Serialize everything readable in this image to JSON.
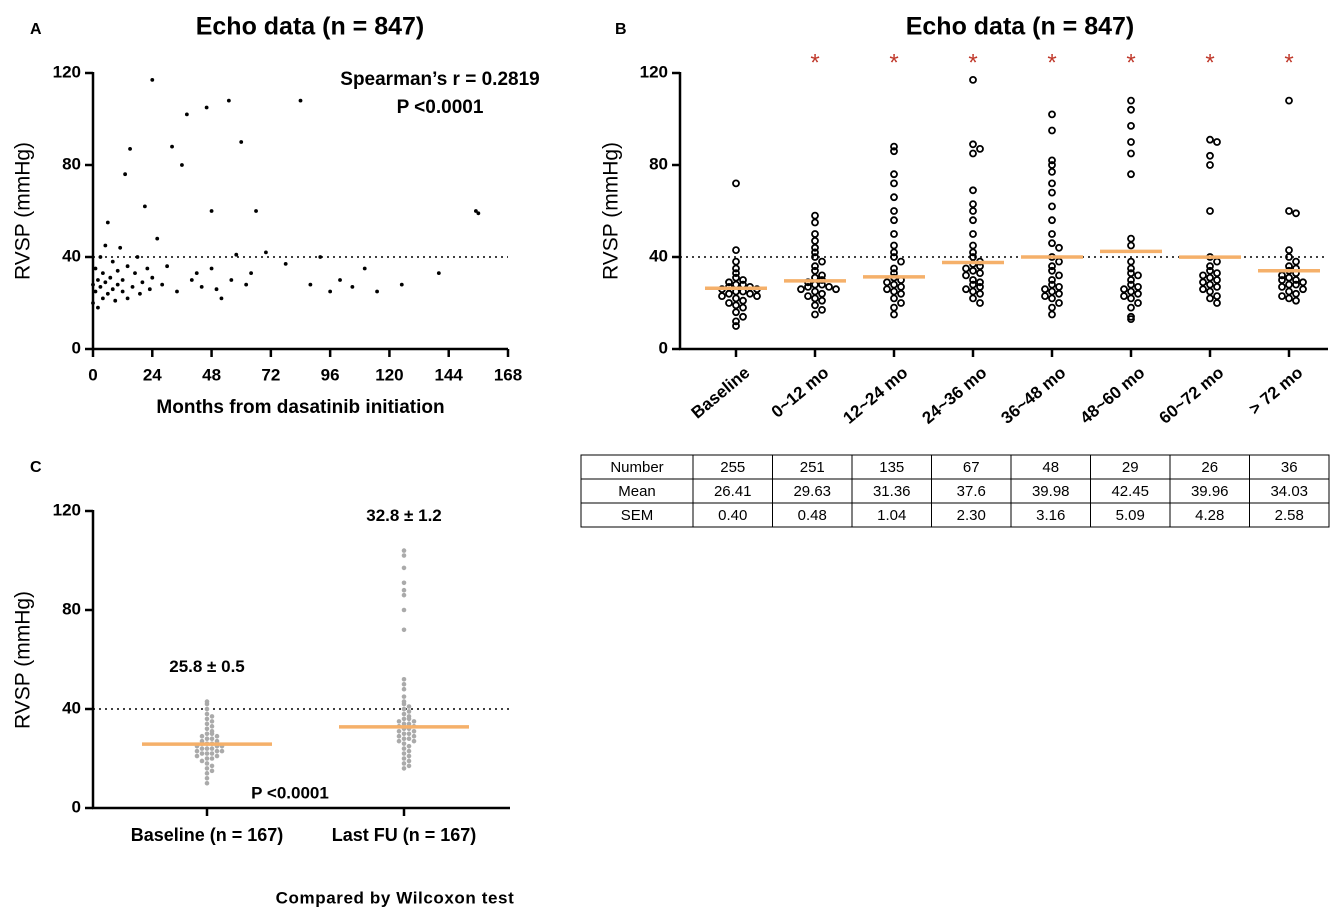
{
  "chart_data": [
    {
      "panel": "A",
      "type": "scatter",
      "title": "Echo data (n = 847)",
      "xlabel": "Months from dasatinib initiation",
      "ylabel": "RVSP (mmHg)",
      "annotations": [
        "Spearman’s r = 0.2819",
        "P <0.0001"
      ],
      "x": [
        0,
        0,
        1,
        1,
        2,
        2,
        3,
        3,
        4,
        4,
        5,
        5,
        6,
        6,
        7,
        8,
        8,
        9,
        10,
        10,
        11,
        12,
        12,
        13,
        14,
        14,
        15,
        16,
        17,
        18,
        19,
        20,
        21,
        22,
        23,
        24,
        24,
        26,
        28,
        30,
        32,
        34,
        36,
        38,
        40,
        42,
        44,
        46,
        48,
        48,
        50,
        52,
        55,
        56,
        58,
        60,
        62,
        64,
        66,
        70,
        78,
        84,
        88,
        92,
        96,
        100,
        105,
        110,
        115,
        125,
        140,
        155,
        156
      ],
      "y": [
        20,
        28,
        35,
        25,
        30,
        18,
        40,
        27,
        22,
        33,
        45,
        29,
        24,
        55,
        31,
        26,
        38,
        21,
        34,
        28,
        44,
        25,
        30,
        76,
        36,
        22,
        87,
        27,
        33,
        40,
        24,
        29,
        62,
        35,
        26,
        117,
        31,
        48,
        28,
        36,
        88,
        25,
        80,
        102,
        30,
        33,
        27,
        105,
        60,
        35,
        26,
        22,
        108,
        30,
        41,
        90,
        28,
        33,
        60,
        42,
        37,
        108,
        28,
        40,
        25,
        30,
        27,
        35,
        25,
        28,
        33,
        60,
        59
      ],
      "color": "#000000",
      "xlim": [
        0,
        168
      ],
      "xticks": [
        0,
        24,
        48,
        72,
        96,
        120,
        144,
        168
      ],
      "ylim": [
        0,
        120
      ],
      "yticks": [
        0,
        40,
        80,
        120
      ],
      "reference_line": 40
    },
    {
      "panel": "B",
      "type": "dot",
      "title": "Echo data (n = 847)",
      "ylabel": "RVSP (mmHg)",
      "categories": [
        "Baseline",
        "0~12 mo",
        "12~24 mo",
        "24~36 mo",
        "36~48 mo",
        "48~60 mo",
        "60~72 mo",
        "> 72 mo"
      ],
      "significance": [
        null,
        "*",
        "*",
        "*",
        "*",
        "*",
        "*",
        "*"
      ],
      "values": [
        [
          72,
          43,
          38,
          35,
          33,
          31,
          30,
          29,
          28,
          28,
          27,
          27,
          26,
          26,
          25,
          25,
          24,
          24,
          23,
          23,
          22,
          21,
          20,
          19,
          18,
          16,
          14,
          12,
          10
        ],
        [
          58,
          55,
          50,
          47,
          44,
          42,
          40,
          38,
          36,
          34,
          32,
          31,
          30,
          29,
          28,
          28,
          27,
          27,
          26,
          26,
          25,
          24,
          23,
          22,
          21,
          19,
          17,
          15
        ],
        [
          88,
          86,
          76,
          72,
          66,
          60,
          56,
          50,
          45,
          42,
          40,
          38,
          35,
          33,
          31,
          30,
          29,
          28,
          27,
          26,
          25,
          24,
          22,
          20,
          18,
          15
        ],
        [
          117,
          89,
          87,
          85,
          69,
          63,
          60,
          56,
          50,
          45,
          42,
          40,
          38,
          37,
          36,
          35,
          34,
          33,
          32,
          30,
          29,
          28,
          27,
          26,
          25,
          24,
          22,
          20
        ],
        [
          102,
          95,
          82,
          80,
          77,
          72,
          68,
          62,
          56,
          50,
          46,
          44,
          40,
          38,
          36,
          34,
          32,
          30,
          28,
          27,
          26,
          25,
          24,
          23,
          22,
          20,
          18,
          15
        ],
        [
          108,
          104,
          97,
          90,
          85,
          76,
          48,
          45,
          38,
          35,
          33,
          32,
          30,
          28,
          27,
          26,
          25,
          24,
          23,
          22,
          20,
          18,
          14,
          13
        ],
        [
          91,
          90,
          84,
          80,
          60,
          40,
          38,
          36,
          34,
          33,
          32,
          31,
          30,
          29,
          28,
          27,
          26,
          25,
          23,
          22,
          20
        ],
        [
          108,
          60,
          59,
          43,
          40,
          38,
          36,
          35,
          34,
          33,
          32,
          31,
          30,
          30,
          29,
          28,
          28,
          27,
          26,
          25,
          24,
          23,
          22,
          21
        ]
      ],
      "color": "#000000",
      "mean_color": "#f5b06a",
      "significance_color": "#c0392b",
      "ylim": [
        0,
        120
      ],
      "yticks": [
        0,
        40,
        80,
        120
      ],
      "reference_line": 40,
      "table": {
        "rows": [
          [
            "Number",
            255,
            251,
            135,
            67,
            48,
            29,
            26,
            36
          ],
          [
            "Mean",
            26.41,
            29.63,
            31.36,
            37.6,
            39.98,
            42.45,
            39.96,
            34.03
          ],
          [
            "SEM",
            "0.40",
            "0.48",
            "1.04",
            "2.30",
            "3.16",
            "5.09",
            "4.28",
            "2.58"
          ]
        ]
      }
    },
    {
      "panel": "C",
      "type": "dot",
      "ylabel": "RVSP (mmHg)",
      "categories": [
        "Baseline (n = 167)",
        "Last FU (n = 167)"
      ],
      "values": [
        [
          43,
          42,
          40,
          38,
          37,
          36,
          35,
          34,
          33,
          32,
          31,
          30,
          30,
          29,
          29,
          28,
          28,
          27,
          27,
          26,
          26,
          26,
          25,
          25,
          25,
          24,
          24,
          24,
          23,
          23,
          23,
          22,
          22,
          22,
          21,
          21,
          20,
          20,
          19,
          18,
          17,
          16,
          15,
          14,
          12,
          10
        ],
        [
          104,
          102,
          97,
          91,
          88,
          86,
          80,
          72,
          52,
          50,
          48,
          45,
          43,
          42,
          41,
          40,
          39,
          38,
          37,
          36,
          36,
          35,
          35,
          34,
          34,
          33,
          33,
          32,
          32,
          31,
          31,
          30,
          30,
          29,
          29,
          28,
          28,
          27,
          27,
          26,
          25,
          24,
          23,
          22,
          21,
          20,
          19,
          18,
          17,
          16
        ]
      ],
      "means": [
        25.8,
        32.8
      ],
      "value_labels": [
        "25.8 ± 0.5",
        "32.8 ± 1.2"
      ],
      "annotation": "P <0.0001",
      "footnote": "Compared by Wilcoxon test",
      "color": "#aaaaaa",
      "mean_color": "#f5b06a",
      "ylim": [
        0,
        120
      ],
      "yticks": [
        0,
        40,
        80,
        120
      ],
      "reference_line": 40
    }
  ]
}
